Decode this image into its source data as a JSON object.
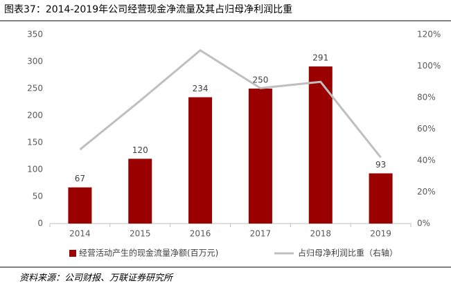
{
  "header": {
    "title": "图表37：2014-2019年公司经营现金净流量及其占归母净利润比重"
  },
  "chart_data": {
    "type": "bar-line",
    "categories": [
      "2014",
      "2015",
      "2016",
      "2017",
      "2018",
      "2019"
    ],
    "series": [
      {
        "name": "经营活动产生的现金流量净额(百万元)",
        "type": "bar",
        "color": "#9b0000",
        "values": [
          67,
          120,
          234,
          250,
          291,
          93
        ]
      },
      {
        "name": "占归母净利润比重（右轴）",
        "type": "line",
        "axis": "y2",
        "color": "#bfbfbf",
        "values": [
          47,
          78,
          110,
          86,
          90,
          42
        ]
      }
    ],
    "ylim": [
      0,
      350
    ],
    "yticks": [
      0,
      50,
      100,
      150,
      200,
      250,
      300,
      350
    ],
    "y2lim": [
      0,
      120
    ],
    "y2ticks": [
      {
        "value": 0,
        "label": "0%"
      },
      {
        "value": 20,
        "label": "20%"
      },
      {
        "value": 40,
        "label": "40%"
      },
      {
        "value": 60,
        "label": "60%"
      },
      {
        "value": 80,
        "label": "80%"
      },
      {
        "value": 100,
        "label": "100%"
      },
      {
        "value": 120,
        "label": "120%"
      }
    ],
    "grid": false
  },
  "footer": {
    "source": "资料来源：公司财报、万联证券研究所"
  }
}
